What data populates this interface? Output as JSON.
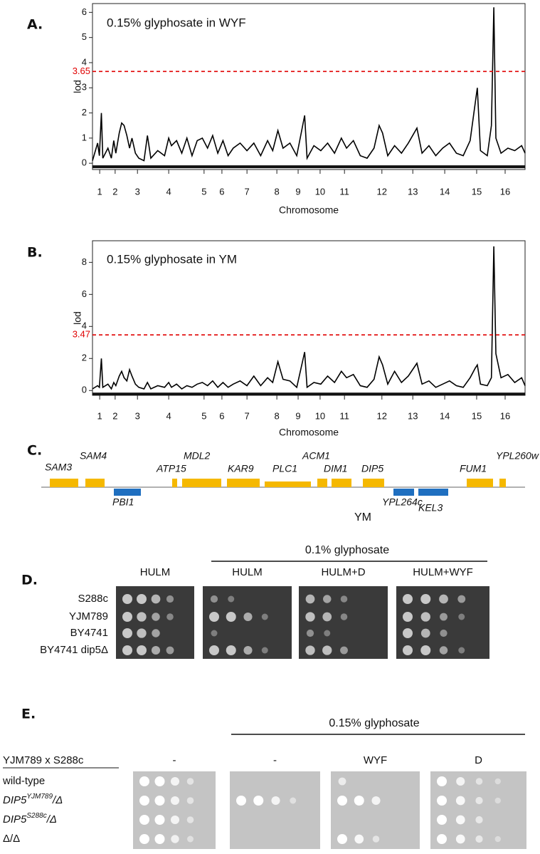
{
  "chart_data": [
    {
      "type": "line",
      "panel_label": "A.",
      "title": "0.15% glyphosate in WYF",
      "ylabel": "lod",
      "xlabel": "Chromosome",
      "x": [
        0.0,
        0.15,
        0.2,
        0.26,
        0.3,
        0.45,
        0.55,
        0.62,
        0.68,
        0.78,
        0.85,
        0.92,
        1.0,
        1.08,
        1.15,
        1.25,
        1.35,
        1.5,
        1.6,
        1.7,
        1.9,
        2.1,
        2.22,
        2.3,
        2.45,
        2.6,
        2.75,
        2.9,
        3.05,
        3.2,
        3.35,
        3.5,
        3.65,
        3.8,
        3.95,
        4.1,
        4.3,
        4.5,
        4.7,
        4.9,
        5.1,
        5.25,
        5.4,
        5.55,
        5.75,
        5.95,
        6.18,
        6.25,
        6.45,
        6.65,
        6.85,
        7.05,
        7.25,
        7.4,
        7.6,
        7.8,
        8.0,
        8.2,
        8.35,
        8.45,
        8.6,
        8.8,
        9.0,
        9.2,
        9.45,
        9.6,
        9.8,
        10.0,
        10.2,
        10.4,
        10.6,
        10.8,
        11.0,
        11.15,
        11.21,
        11.3,
        11.5,
        11.62,
        11.69,
        11.75,
        11.9,
        12.1,
        12.3,
        12.5,
        12.6
      ],
      "values": [
        0.1,
        0.8,
        0.3,
        2.0,
        0.2,
        0.6,
        0.2,
        0.9,
        0.4,
        1.2,
        1.6,
        1.5,
        1.1,
        0.6,
        1.0,
        0.4,
        0.2,
        0.1,
        1.1,
        0.2,
        0.5,
        0.3,
        1.0,
        0.7,
        0.9,
        0.4,
        1.0,
        0.3,
        0.9,
        1.0,
        0.6,
        1.1,
        0.4,
        0.9,
        0.3,
        0.6,
        0.8,
        0.5,
        0.8,
        0.3,
        0.9,
        0.5,
        1.3,
        0.6,
        0.8,
        0.3,
        1.9,
        0.2,
        0.7,
        0.5,
        0.8,
        0.4,
        1.0,
        0.6,
        0.9,
        0.3,
        0.2,
        0.6,
        1.5,
        1.2,
        0.3,
        0.7,
        0.4,
        0.8,
        1.4,
        0.4,
        0.7,
        0.3,
        0.6,
        0.8,
        0.4,
        0.3,
        0.9,
        2.4,
        3.0,
        0.5,
        0.3,
        1.5,
        6.2,
        1.0,
        0.4,
        0.6,
        0.5,
        0.7,
        0.4
      ],
      "color": "#000000",
      "threshold": 3.65,
      "threshold_color": "#e00000",
      "xlim": [
        0,
        12.6
      ],
      "ylim": [
        -0.25,
        6.35
      ],
      "yticks": [
        0,
        1,
        2,
        3,
        4,
        5,
        6
      ],
      "xticks": [
        {
          "value": 0.21,
          "label": "1"
        },
        {
          "value": 0.66,
          "label": "2"
        },
        {
          "value": 1.31,
          "label": "3"
        },
        {
          "value": 2.22,
          "label": "4"
        },
        {
          "value": 3.25,
          "label": "5"
        },
        {
          "value": 3.77,
          "label": "6"
        },
        {
          "value": 4.5,
          "label": "7"
        },
        {
          "value": 5.37,
          "label": "8"
        },
        {
          "value": 5.99,
          "label": "9"
        },
        {
          "value": 6.63,
          "label": "10"
        },
        {
          "value": 7.34,
          "label": "11"
        },
        {
          "value": 8.43,
          "label": "12"
        },
        {
          "value": 9.33,
          "label": "13"
        },
        {
          "value": 10.26,
          "label": "14"
        },
        {
          "value": 11.19,
          "label": "15"
        },
        {
          "value": 12.02,
          "label": "16"
        }
      ]
    },
    {
      "type": "line",
      "panel_label": "B.",
      "title": "0.15% glyphosate in YM",
      "ylabel": "lod",
      "xlabel": "Chromosome",
      "x": [
        0.0,
        0.15,
        0.2,
        0.26,
        0.3,
        0.45,
        0.55,
        0.62,
        0.68,
        0.78,
        0.85,
        0.92,
        1.0,
        1.08,
        1.15,
        1.25,
        1.35,
        1.5,
        1.6,
        1.7,
        1.9,
        2.1,
        2.22,
        2.3,
        2.45,
        2.6,
        2.75,
        2.9,
        3.05,
        3.2,
        3.35,
        3.5,
        3.65,
        3.8,
        3.95,
        4.1,
        4.3,
        4.5,
        4.7,
        4.9,
        5.1,
        5.25,
        5.4,
        5.55,
        5.75,
        5.95,
        6.18,
        6.25,
        6.45,
        6.65,
        6.85,
        7.05,
        7.25,
        7.4,
        7.6,
        7.8,
        8.0,
        8.2,
        8.35,
        8.45,
        8.6,
        8.8,
        9.0,
        9.2,
        9.45,
        9.6,
        9.8,
        10.0,
        10.2,
        10.4,
        10.6,
        10.8,
        11.0,
        11.15,
        11.21,
        11.3,
        11.5,
        11.62,
        11.69,
        11.75,
        11.9,
        12.1,
        12.3,
        12.5,
        12.6
      ],
      "values": [
        0.1,
        0.3,
        0.2,
        2.0,
        0.2,
        0.4,
        0.1,
        0.5,
        0.3,
        0.9,
        1.2,
        0.8,
        0.6,
        1.3,
        0.9,
        0.4,
        0.2,
        0.1,
        0.5,
        0.1,
        0.3,
        0.2,
        0.5,
        0.2,
        0.4,
        0.1,
        0.3,
        0.2,
        0.4,
        0.5,
        0.3,
        0.6,
        0.2,
        0.5,
        0.2,
        0.4,
        0.6,
        0.3,
        0.9,
        0.3,
        0.8,
        0.5,
        1.8,
        0.7,
        0.6,
        0.2,
        2.4,
        0.2,
        0.5,
        0.4,
        0.9,
        0.5,
        1.2,
        0.8,
        1.0,
        0.3,
        0.2,
        0.7,
        2.1,
        1.6,
        0.4,
        1.2,
        0.5,
        0.9,
        1.7,
        0.4,
        0.6,
        0.2,
        0.4,
        0.6,
        0.3,
        0.2,
        0.8,
        1.4,
        1.6,
        0.4,
        0.3,
        0.8,
        9.0,
        2.3,
        0.8,
        1.0,
        0.5,
        0.8,
        0.3
      ],
      "color": "#000000",
      "threshold": 3.47,
      "threshold_color": "#e00000",
      "xlim": [
        0,
        12.6
      ],
      "ylim": [
        -0.3,
        9.35
      ],
      "yticks": [
        0,
        2,
        4,
        6,
        8
      ],
      "xticks": [
        {
          "value": 0.21,
          "label": "1"
        },
        {
          "value": 0.66,
          "label": "2"
        },
        {
          "value": 1.31,
          "label": "3"
        },
        {
          "value": 2.22,
          "label": "4"
        },
        {
          "value": 3.25,
          "label": "5"
        },
        {
          "value": 3.77,
          "label": "6"
        },
        {
          "value": 4.5,
          "label": "7"
        },
        {
          "value": 5.37,
          "label": "8"
        },
        {
          "value": 5.99,
          "label": "9"
        },
        {
          "value": 6.63,
          "label": "10"
        },
        {
          "value": 7.34,
          "label": "11"
        },
        {
          "value": 8.43,
          "label": "12"
        },
        {
          "value": 9.33,
          "label": "13"
        },
        {
          "value": 10.26,
          "label": "14"
        },
        {
          "value": 11.19,
          "label": "15"
        },
        {
          "value": 12.02,
          "label": "16"
        }
      ]
    }
  ],
  "panel_c": {
    "label": "C.",
    "strain": "YM",
    "genes": [
      {
        "name": "SAM3",
        "color": "#f5b800"
      },
      {
        "name": "SAM4",
        "color": "#f5b800"
      },
      {
        "name": "PBI1",
        "color": "#1f6fc0"
      },
      {
        "name": "ATP15",
        "color": "#f5b800"
      },
      {
        "name": "MDL2",
        "color": "#f5b800"
      },
      {
        "name": "KAR9",
        "color": "#f5b800"
      },
      {
        "name": "PLC1",
        "color": "#f5b800"
      },
      {
        "name": "ACM1",
        "color": "#f5b800"
      },
      {
        "name": "DIM1",
        "color": "#f5b800"
      },
      {
        "name": "DIP5",
        "color": "#f5b800"
      },
      {
        "name": "YPL264c",
        "color": "#1f6fc0"
      },
      {
        "name": "KEL3",
        "color": "#1f6fc0"
      },
      {
        "name": "FUM1",
        "color": "#f5b800"
      },
      {
        "name": "YPL260w",
        "color": "#f5b800"
      }
    ]
  },
  "panel_d": {
    "label": "D.",
    "condition": "0.1% glyphosate",
    "media": [
      "HULM",
      "HULM",
      "HULM+D",
      "HULM+WYF"
    ],
    "strains": [
      "S288c",
      "YJM789",
      "BY4741",
      "BY4741 dip5Δ"
    ]
  },
  "panel_e": {
    "label": "E.",
    "condition": "0.15% glyphosate",
    "cross": "YJM789 x S288c",
    "media": [
      "-",
      "-",
      "WYF",
      "D"
    ],
    "genotypes": [
      {
        "text": "wild-type"
      },
      {
        "gene": "DIP5",
        "allele": "YJM789",
        "suffix": "/Δ"
      },
      {
        "gene": "DIP5",
        "allele": "S288c",
        "suffix": "/Δ"
      },
      {
        "text": "Δ/Δ"
      }
    ]
  }
}
